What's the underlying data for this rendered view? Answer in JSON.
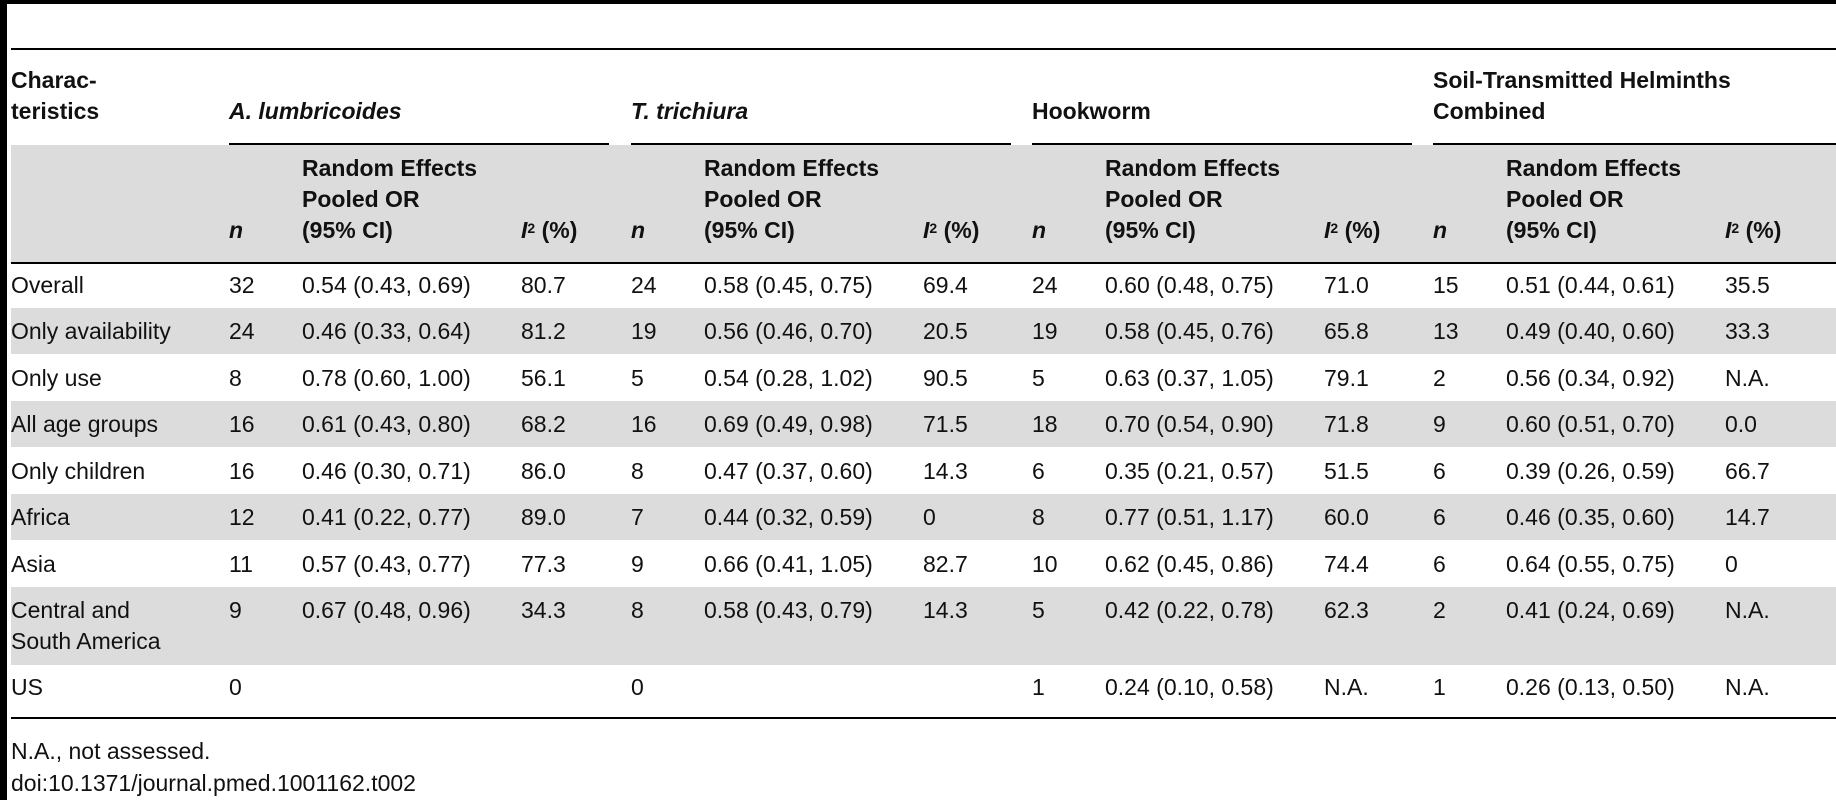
{
  "table": {
    "characteristics_header": "Charac-\nteristics",
    "groups": [
      {
        "label": "A. lumbricoides",
        "italic": true
      },
      {
        "label": "T. trichiura",
        "italic": true
      },
      {
        "label": "Hookworm",
        "italic": false
      },
      {
        "label": "Soil-Transmitted Helminths\nCombined",
        "italic": false
      }
    ],
    "subheaders": {
      "n": "n",
      "or": "Random Effects\nPooled OR\n(95% CI)",
      "i2_letter": "I",
      "i2_sup": "2",
      "i2_unit": " (%)"
    },
    "rows": [
      {
        "label": "Overall",
        "cells": [
          "32",
          "0.54 (0.43, 0.69)",
          "80.7",
          "24",
          "0.58 (0.45, 0.75)",
          "69.4",
          "24",
          "0.60 (0.48, 0.75)",
          "71.0",
          "15",
          "0.51 (0.44, 0.61)",
          "35.5"
        ]
      },
      {
        "label": "Only availability",
        "cells": [
          "24",
          "0.46 (0.33, 0.64)",
          "81.2",
          "19",
          "0.56 (0.46, 0.70)",
          "20.5",
          "19",
          "0.58 (0.45, 0.76)",
          "65.8",
          "13",
          "0.49 (0.40, 0.60)",
          "33.3"
        ]
      },
      {
        "label": "Only use",
        "cells": [
          "8",
          "0.78 (0.60, 1.00)",
          "56.1",
          "5",
          "0.54 (0.28, 1.02)",
          "90.5",
          "5",
          "0.63 (0.37, 1.05)",
          "79.1",
          "2",
          "0.56 (0.34, 0.92)",
          "N.A."
        ]
      },
      {
        "label": "All age groups",
        "cells": [
          "16",
          "0.61 (0.43, 0.80)",
          "68.2",
          "16",
          "0.69 (0.49, 0.98)",
          "71.5",
          "18",
          "0.70 (0.54, 0.90)",
          "71.8",
          "9",
          "0.60 (0.51, 0.70)",
          "0.0"
        ]
      },
      {
        "label": "Only children",
        "cells": [
          "16",
          "0.46 (0.30, 0.71)",
          "86.0",
          "8",
          "0.47 (0.37, 0.60)",
          "14.3",
          "6",
          "0.35 (0.21, 0.57)",
          "51.5",
          "6",
          "0.39 (0.26, 0.59)",
          "66.7"
        ]
      },
      {
        "label": "Africa",
        "cells": [
          "12",
          "0.41 (0.22, 0.77)",
          "89.0",
          "7",
          "0.44 (0.32, 0.59)",
          "0",
          "8",
          "0.77 (0.51, 1.17)",
          "60.0",
          "6",
          "0.46 (0.35, 0.60)",
          "14.7"
        ]
      },
      {
        "label": "Asia",
        "cells": [
          "11",
          "0.57 (0.43, 0.77)",
          "77.3",
          "9",
          "0.66 (0.41, 1.05)",
          "82.7",
          "10",
          "0.62 (0.45, 0.86)",
          "74.4",
          "6",
          "0.64 (0.55, 0.75)",
          "0"
        ]
      },
      {
        "label": "Central and\nSouth America",
        "cells": [
          "9",
          "0.67 (0.48, 0.96)",
          "34.3",
          "8",
          "0.58 (0.43, 0.79)",
          "14.3",
          "5",
          "0.42 (0.22, 0.78)",
          "62.3",
          "2",
          "0.41 (0.24, 0.69)",
          "N.A."
        ]
      },
      {
        "label": "US",
        "cells": [
          "0",
          "",
          "",
          "0",
          "",
          "",
          "1",
          "0.24 (0.10, 0.58)",
          "N.A.",
          "1",
          "0.26 (0.13, 0.50)",
          "N.A."
        ]
      }
    ]
  },
  "footnote": "N.A., not assessed.",
  "doi": "doi:10.1371/journal.pmed.1001162.t002",
  "colors": {
    "band": "#dcdcdc",
    "rule": "#000000"
  }
}
